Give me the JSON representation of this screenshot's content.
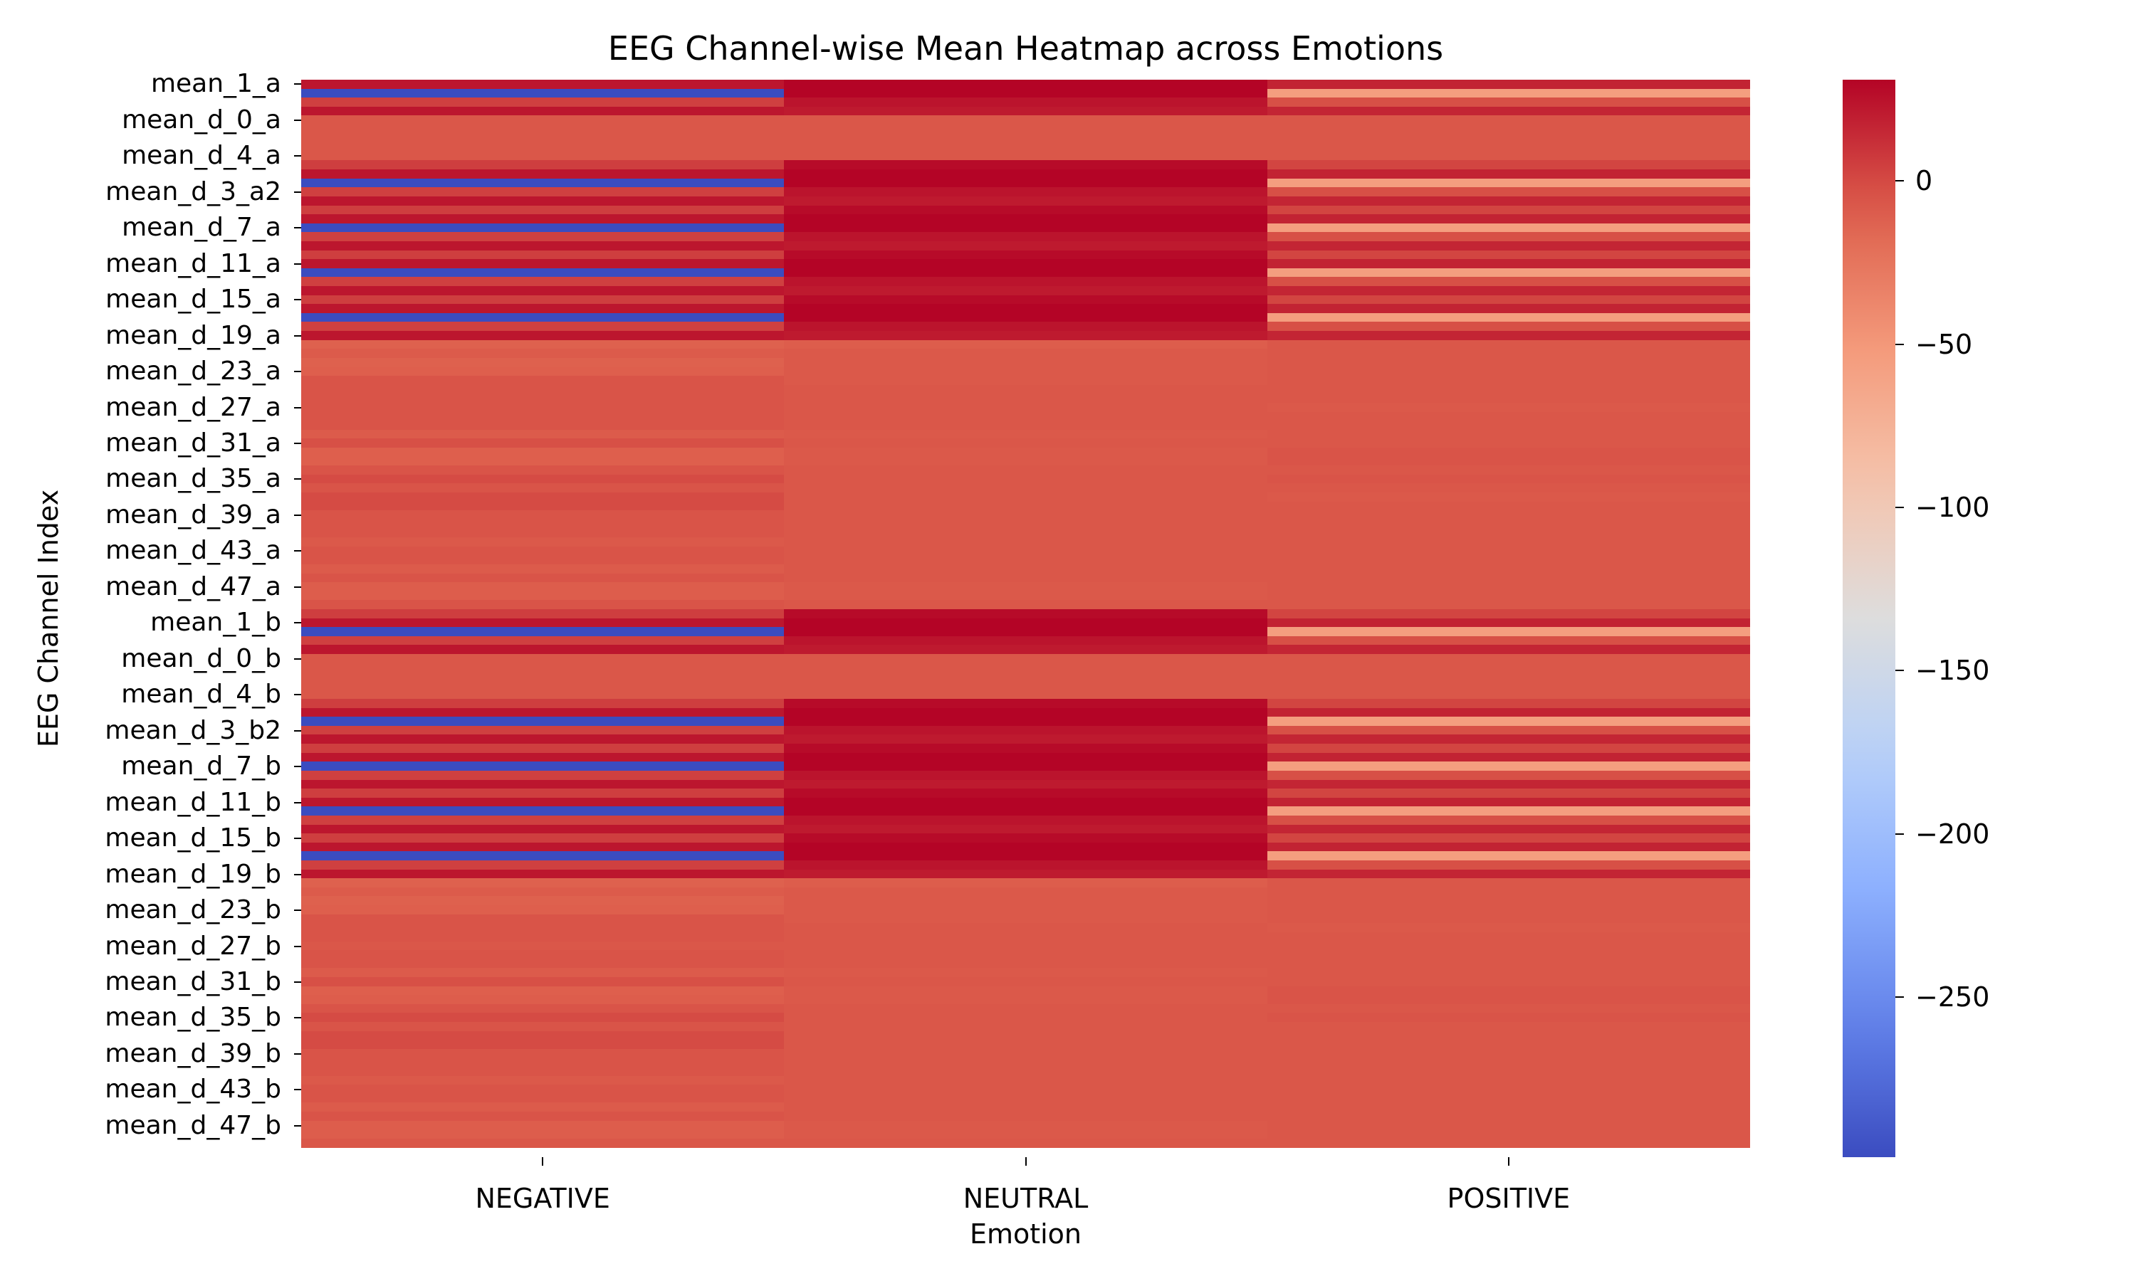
{
  "chart_data": {
    "type": "heatmap",
    "title": "EEG Channel-wise Mean Heatmap across Emotions",
    "xlabel": "Emotion",
    "ylabel": "EEG Channel Index",
    "columns": [
      "NEGATIVE",
      "NEUTRAL",
      "POSITIVE"
    ],
    "ytick_labels": [
      {
        "row": 0,
        "label": "mean_1_a"
      },
      {
        "row": 4,
        "label": "mean_d_0_a"
      },
      {
        "row": 8,
        "label": "mean_d_4_a"
      },
      {
        "row": 12,
        "label": "mean_d_3_a2"
      },
      {
        "row": 16,
        "label": "mean_d_7_a"
      },
      {
        "row": 20,
        "label": "mean_d_11_a"
      },
      {
        "row": 24,
        "label": "mean_d_15_a"
      },
      {
        "row": 28,
        "label": "mean_d_19_a"
      },
      {
        "row": 32,
        "label": "mean_d_23_a"
      },
      {
        "row": 36,
        "label": "mean_d_27_a"
      },
      {
        "row": 40,
        "label": "mean_d_31_a"
      },
      {
        "row": 44,
        "label": "mean_d_35_a"
      },
      {
        "row": 48,
        "label": "mean_d_39_a"
      },
      {
        "row": 52,
        "label": "mean_d_43_a"
      },
      {
        "row": 56,
        "label": "mean_d_47_a"
      },
      {
        "row": 60,
        "label": "mean_1_b"
      },
      {
        "row": 64,
        "label": "mean_d_0_b"
      },
      {
        "row": 68,
        "label": "mean_d_4_b"
      },
      {
        "row": 72,
        "label": "mean_d_3_b2"
      },
      {
        "row": 76,
        "label": "mean_d_7_b"
      },
      {
        "row": 80,
        "label": "mean_d_11_b"
      },
      {
        "row": 84,
        "label": "mean_d_15_b"
      },
      {
        "row": 88,
        "label": "mean_d_19_b"
      },
      {
        "row": 92,
        "label": "mean_d_23_b"
      },
      {
        "row": 96,
        "label": "mean_d_27_b"
      },
      {
        "row": 100,
        "label": "mean_d_31_b"
      },
      {
        "row": 104,
        "label": "mean_d_35_b"
      },
      {
        "row": 108,
        "label": "mean_d_39_b"
      },
      {
        "row": 112,
        "label": "mean_d_43_b"
      },
      {
        "row": 116,
        "label": "mean_d_47_b"
      }
    ],
    "n_rows": 120,
    "values": [
      [
        23,
        31,
        17
      ],
      [
        -299,
        31,
        -55
      ],
      [
        4,
        24,
        -3
      ],
      [
        23,
        21,
        16
      ],
      [
        -6,
        -6,
        -6
      ],
      [
        -6,
        -6,
        -6
      ],
      [
        -6,
        -6,
        -6
      ],
      [
        -6,
        -6,
        -6
      ],
      [
        -6,
        -6,
        -6
      ],
      [
        5,
        28,
        2
      ],
      [
        23,
        31,
        17
      ],
      [
        -299,
        31,
        -55
      ],
      [
        4,
        24,
        -3
      ],
      [
        23,
        21,
        16
      ],
      [
        5,
        28,
        2
      ],
      [
        23,
        31,
        17
      ],
      [
        -299,
        31,
        -55
      ],
      [
        4,
        24,
        -3
      ],
      [
        23,
        21,
        16
      ],
      [
        5,
        28,
        2
      ],
      [
        23,
        31,
        17
      ],
      [
        -299,
        31,
        -55
      ],
      [
        4,
        24,
        -3
      ],
      [
        23,
        21,
        16
      ],
      [
        5,
        28,
        2
      ],
      [
        23,
        31,
        17
      ],
      [
        -299,
        31,
        -55
      ],
      [
        4,
        24,
        -3
      ],
      [
        23,
        21,
        16
      ],
      [
        -11,
        -9,
        -6
      ],
      [
        -8,
        -7,
        -6
      ],
      [
        -11,
        -7,
        -6
      ],
      [
        -10,
        -7,
        -6
      ],
      [
        -5,
        -7,
        -6
      ],
      [
        -5,
        -6,
        -6
      ],
      [
        -5,
        -6,
        -6
      ],
      [
        -5,
        -6,
        -7
      ],
      [
        -5,
        -6,
        -6
      ],
      [
        -5,
        -6,
        -6
      ],
      [
        -8,
        -7,
        -6
      ],
      [
        -3,
        -6,
        -6
      ],
      [
        -10,
        -7,
        -5
      ],
      [
        -10,
        -7,
        -5
      ],
      [
        -5,
        -6,
        -6
      ],
      [
        -1,
        -6,
        -5
      ],
      [
        -5,
        -6,
        -6
      ],
      [
        -1,
        -6,
        -7
      ],
      [
        -1,
        -6,
        -6
      ],
      [
        -5,
        -6,
        -6
      ],
      [
        -5,
        -6,
        -6
      ],
      [
        -5,
        -6,
        -6
      ],
      [
        -7,
        -6,
        -6
      ],
      [
        -5,
        -6,
        -6
      ],
      [
        -5,
        -6,
        -6
      ],
      [
        -8,
        -6,
        -6
      ],
      [
        -5,
        -6,
        -6
      ],
      [
        -9,
        -7,
        -6
      ],
      [
        -9,
        -7,
        -6
      ],
      [
        -5,
        -6,
        -6
      ],
      [
        5,
        28,
        2
      ],
      [
        23,
        31,
        17
      ],
      [
        -299,
        31,
        -55
      ],
      [
        4,
        24,
        -3
      ],
      [
        23,
        21,
        16
      ],
      [
        -6,
        -6,
        -6
      ],
      [
        -6,
        -6,
        -6
      ],
      [
        -6,
        -6,
        -6
      ],
      [
        -6,
        -6,
        -6
      ],
      [
        -6,
        -6,
        -6
      ],
      [
        5,
        28,
        2
      ],
      [
        23,
        31,
        17
      ],
      [
        -299,
        31,
        -55
      ],
      [
        4,
        24,
        -3
      ],
      [
        23,
        21,
        16
      ],
      [
        5,
        28,
        2
      ],
      [
        23,
        31,
        17
      ],
      [
        -299,
        31,
        -55
      ],
      [
        4,
        24,
        -3
      ],
      [
        23,
        21,
        16
      ],
      [
        5,
        28,
        2
      ],
      [
        23,
        31,
        17
      ],
      [
        -299,
        31,
        -55
      ],
      [
        4,
        24,
        -3
      ],
      [
        23,
        21,
        16
      ],
      [
        5,
        28,
        2
      ],
      [
        23,
        31,
        17
      ],
      [
        -299,
        31,
        -55
      ],
      [
        4,
        24,
        -3
      ],
      [
        23,
        21,
        16
      ],
      [
        -11,
        -9,
        -6
      ],
      [
        -8,
        -7,
        -6
      ],
      [
        -11,
        -7,
        -6
      ],
      [
        -10,
        -7,
        -6
      ],
      [
        -5,
        -7,
        -6
      ],
      [
        -5,
        -6,
        -7
      ],
      [
        -5,
        -6,
        -6
      ],
      [
        -6,
        -6,
        -6
      ],
      [
        -5,
        -6,
        -6
      ],
      [
        -5,
        -6,
        -6
      ],
      [
        -8,
        -7,
        -6
      ],
      [
        -3,
        -6,
        -6
      ],
      [
        -10,
        -7,
        -5
      ],
      [
        -9,
        -7,
        -5
      ],
      [
        -5,
        -6,
        -6
      ],
      [
        -1,
        -6,
        -5
      ],
      [
        -5,
        -6,
        -6
      ],
      [
        -1,
        -6,
        -6
      ],
      [
        -1,
        -6,
        -6
      ],
      [
        -5,
        -6,
        -6
      ],
      [
        -5,
        -6,
        -6
      ],
      [
        -5,
        -6,
        -6
      ],
      [
        -7,
        -6,
        -6
      ],
      [
        -5,
        -6,
        -6
      ],
      [
        -5,
        -6,
        -6
      ],
      [
        -8,
        -6,
        -6
      ],
      [
        -5,
        -6,
        -6
      ],
      [
        -9,
        -7,
        -6
      ],
      [
        -9,
        -7,
        -6
      ],
      [
        -6,
        -6,
        -6
      ]
    ],
    "colormap": "coolwarm",
    "vmin": -299,
    "vmax": 31,
    "colorbar": {
      "ticks": [
        0,
        -50,
        -100,
        -150,
        -200,
        -250
      ],
      "tick_labels": [
        "0",
        "−50",
        "−100",
        "−150",
        "−200",
        "−250"
      ]
    },
    "legend_position": "right"
  }
}
